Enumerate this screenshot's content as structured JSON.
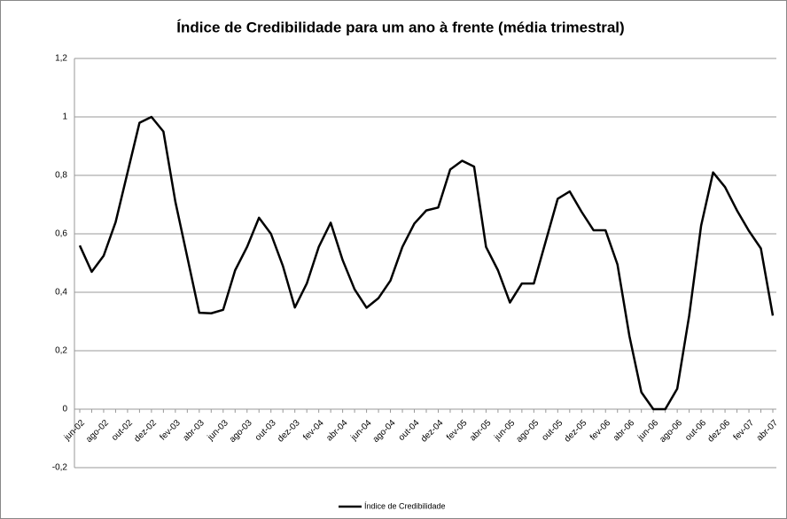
{
  "chart_data": {
    "type": "line",
    "title": "Índice de Credibilidade para um ano à frente (média trimestral)",
    "categories": [
      "jun-02",
      null,
      "ago-02",
      null,
      "out-02",
      null,
      "dez-02",
      null,
      "fev-03",
      null,
      "abr-03",
      null,
      "jun-03",
      null,
      "ago-03",
      null,
      "out-03",
      null,
      "dez-03",
      null,
      "fev-04",
      null,
      "abr-04",
      null,
      "jun-04",
      null,
      "ago-04",
      null,
      "out-04",
      null,
      "dez-04",
      null,
      "fev-05",
      null,
      "abr-05",
      null,
      "jun-05",
      null,
      "ago-05",
      null,
      "out-05",
      null,
      "dez-05",
      null,
      "fev-06",
      null,
      "abr-06",
      null,
      "jun-06",
      null,
      "ago-06",
      null,
      "out-06",
      null,
      "dez-06",
      null,
      "fev-07",
      null,
      "abr-07"
    ],
    "series": [
      {
        "name": "Índice de Credibilidade",
        "color": "#000000",
        "values": [
          0.56,
          0.47,
          0.525,
          0.64,
          0.81,
          0.98,
          1.0,
          0.95,
          0.71,
          0.52,
          0.33,
          0.328,
          0.34,
          0.475,
          0.555,
          0.655,
          0.6,
          0.49,
          0.348,
          0.43,
          0.555,
          0.638,
          0.51,
          0.41,
          0.347,
          0.38,
          0.44,
          0.555,
          0.635,
          0.68,
          0.69,
          0.82,
          0.85,
          0.83,
          0.555,
          0.475,
          0.365,
          0.43,
          0.43,
          0.575,
          0.72,
          0.745,
          0.675,
          0.612,
          0.612,
          0.495,
          0.25,
          0.058,
          0.0,
          0.0,
          0.07,
          0.32,
          0.628,
          0.81,
          0.76,
          0.68,
          0.61,
          0.55,
          0.32
        ]
      }
    ],
    "ylim": [
      -0.2,
      1.2
    ],
    "yticks": [
      {
        "value": -0.2,
        "label": "-0,2"
      },
      0,
      {
        "value": 0.2,
        "label": "0,2"
      },
      {
        "value": 0.4,
        "label": "0,4"
      },
      {
        "value": 0.6,
        "label": "0,6"
      },
      {
        "value": 0.8,
        "label": "0,8"
      },
      1,
      {
        "value": 1.2,
        "label": "1,2"
      }
    ],
    "grid": true,
    "legend": "bottom"
  }
}
